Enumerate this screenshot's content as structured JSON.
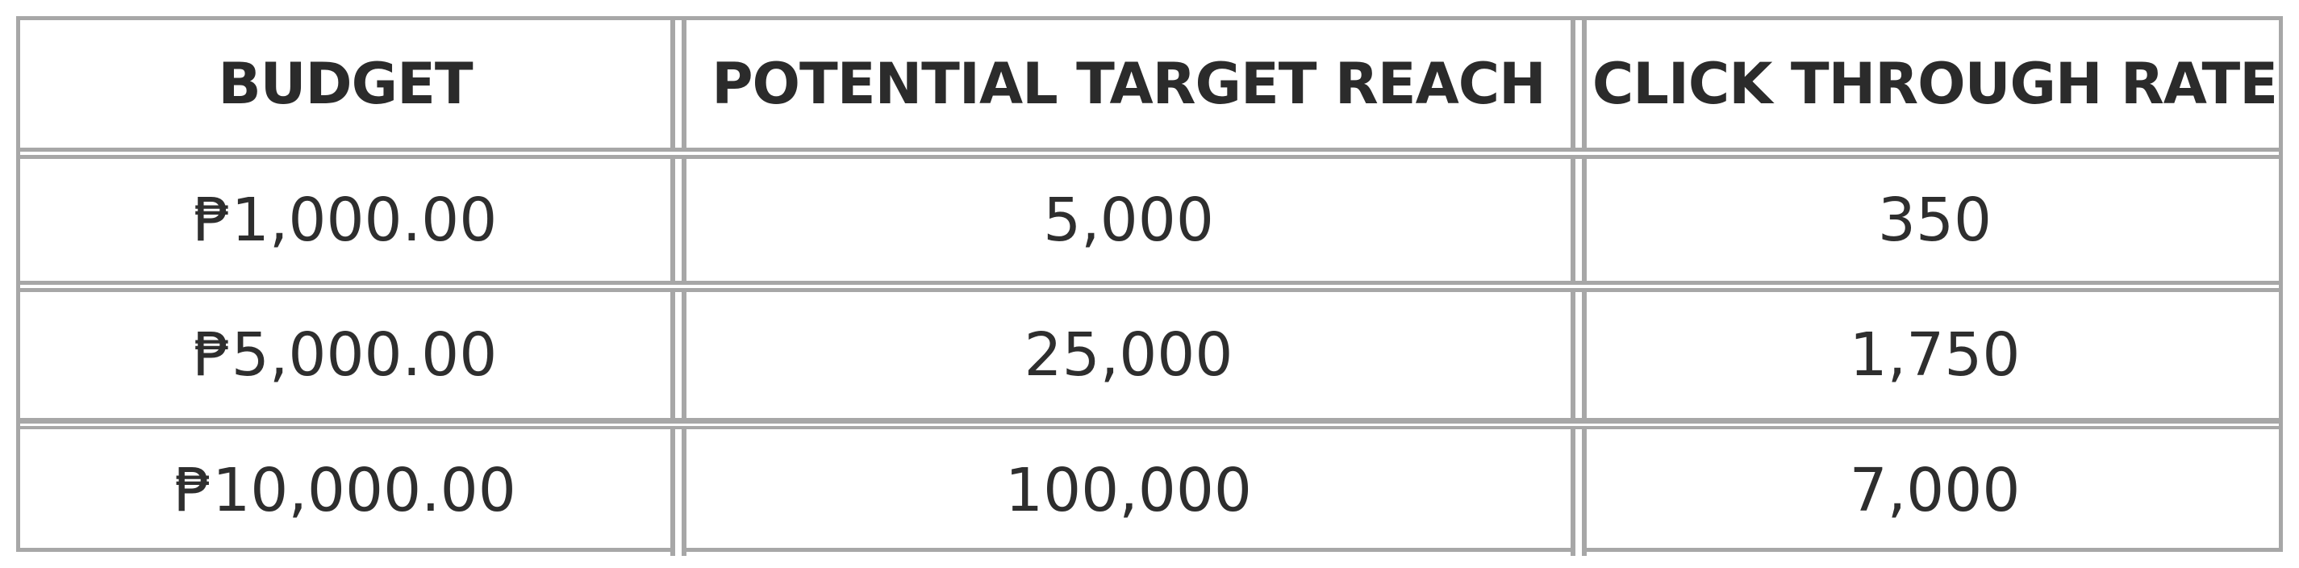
{
  "table": {
    "headers": [
      "BUDGET",
      "POTENTIAL TARGET REACH",
      "CLICK THROUGH RATE"
    ],
    "rows": [
      [
        "₱1,000.00",
        "5,000",
        "350"
      ],
      [
        "₱5,000.00",
        "25,000",
        "1,750"
      ],
      [
        "₱10,000.00",
        "100,000",
        "7,000"
      ]
    ]
  },
  "colors": {
    "border": "#a7a7a7",
    "text": "#2e2e2e",
    "background": "#ffffff"
  }
}
